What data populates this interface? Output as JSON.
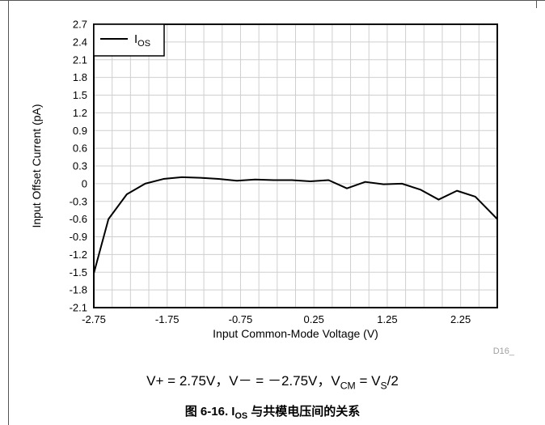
{
  "chart_data": {
    "type": "line",
    "title": "",
    "xlabel": "Input Common-Mode Voltage (V)",
    "ylabel": "Input Offset Current (pA)",
    "xlim": [
      -2.75,
      2.75
    ],
    "ylim": [
      -2.1,
      2.7
    ],
    "x_ticks": [
      -2.75,
      -1.75,
      -0.75,
      0.25,
      1.25,
      2.25
    ],
    "x_tick_labels": [
      "-2.75",
      "-1.75",
      "-0.75",
      "0.25",
      "1.25",
      "2.25"
    ],
    "y_ticks": [
      2.7,
      2.4,
      2.1,
      1.8,
      1.5,
      1.2,
      0.9,
      0.6,
      0.3,
      0,
      -0.3,
      -0.6,
      -0.9,
      -1.2,
      -1.5,
      -1.8,
      -2.1
    ],
    "y_tick_labels": [
      "2.7",
      "2.4",
      "2.1",
      "1.8",
      "1.5",
      "1.2",
      "0.9",
      "0.6",
      "0.3",
      "0",
      "-0.3",
      "-0.6",
      "-0.9",
      "-1.2",
      "-1.5",
      "-1.8",
      "-2.1"
    ],
    "grid": true,
    "legend_position": "top-left",
    "series": [
      {
        "name": "I",
        "name_sub": "OS",
        "color": "#000000",
        "x": [
          -2.75,
          -2.55,
          -2.3,
          -2.05,
          -1.8,
          -1.55,
          -1.3,
          -1.05,
          -0.8,
          -0.55,
          -0.3,
          -0.05,
          0.2,
          0.45,
          0.7,
          0.95,
          1.2,
          1.45,
          1.7,
          1.95,
          2.2,
          2.45,
          2.75
        ],
        "values": [
          -1.52,
          -0.6,
          -0.18,
          0.0,
          0.08,
          0.11,
          0.1,
          0.08,
          0.05,
          0.07,
          0.06,
          0.06,
          0.04,
          0.06,
          -0.08,
          0.03,
          -0.01,
          0.0,
          -0.1,
          -0.27,
          -0.12,
          -0.22,
          -0.6
        ]
      }
    ],
    "watermark": "D16_"
  },
  "conditions": {
    "vplus": "V+ = 2.75V，V－ = －2.75V，V",
    "vcm_sub": "CM",
    "eq": " = V",
    "vs_sub": "S",
    "tail": "/2"
  },
  "caption": {
    "prefix": "图 6-16. I",
    "sub": "OS",
    "suffix": " 与共模电压间的关系"
  }
}
